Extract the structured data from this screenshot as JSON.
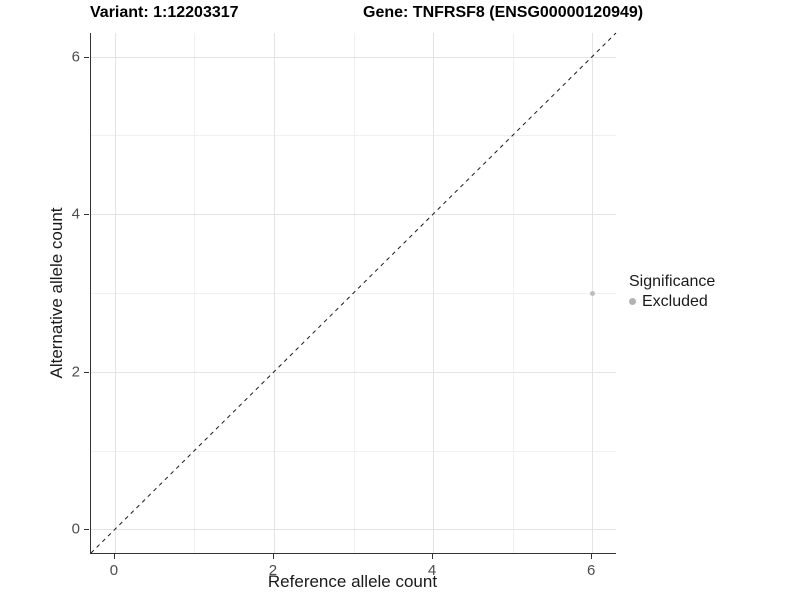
{
  "header": {
    "variant_title": "Variant: 1:12203317",
    "gene_title": "Gene: TNFRSF8 (ENSG00000120949)"
  },
  "chart_data": {
    "type": "scatter",
    "xlabel": "Reference allele count",
    "ylabel": "Alternative allele count",
    "xlim": [
      -0.3,
      6.3
    ],
    "ylim": [
      -0.3,
      6.3
    ],
    "x_ticks": [
      0,
      2,
      4,
      6
    ],
    "y_ticks": [
      0,
      2,
      4,
      6
    ],
    "minor_gridlines_x": [
      1,
      3,
      5
    ],
    "minor_gridlines_y": [
      1,
      3,
      5
    ],
    "grid_major_color": "#e4e4e4",
    "grid_minor_color": "#f0f0f0",
    "axis_line_color": "#333333",
    "series": [
      {
        "name": "Excluded",
        "color": "#bdbdbd",
        "point_radius": 2.5,
        "points": [
          {
            "x": 6,
            "y": 3
          }
        ]
      }
    ],
    "reference_line": {
      "type": "identity",
      "slope": 1,
      "intercept": 0,
      "style": "dashed",
      "color": "#1a1a1a"
    },
    "legend": {
      "title": "Significance",
      "position": "right",
      "entries": [
        {
          "label": "Excluded",
          "color": "#b3b3b3"
        }
      ]
    }
  }
}
